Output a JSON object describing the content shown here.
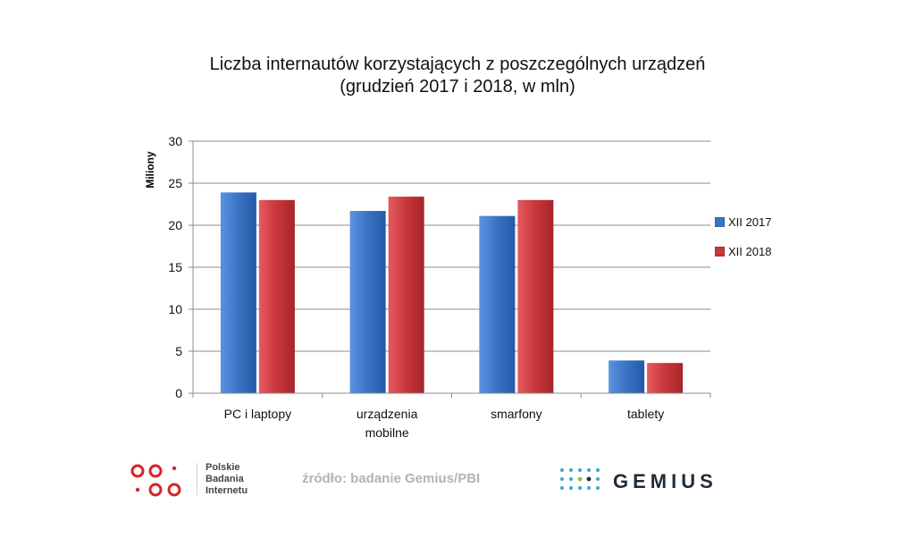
{
  "chart_data": {
    "type": "bar",
    "title": "Liczba internautów korzystających z poszczególnych urządzeń",
    "subtitle": "(grudzień 2017 i 2018, w mln)",
    "ylabel": "Miliony",
    "xlabel": "",
    "ylim": [
      0,
      30
    ],
    "yticks": [
      "0",
      "5",
      "10",
      "15",
      "20",
      "25",
      "30"
    ],
    "categories": [
      "PC i laptopy",
      "urządzenia mobilne",
      "smarfony",
      "tablety"
    ],
    "category_lines": [
      [
        "PC i laptopy"
      ],
      [
        "urządzenia",
        "mobilne"
      ],
      [
        "smarfony"
      ],
      [
        "tablety"
      ]
    ],
    "series": [
      {
        "name": "XII 2017",
        "color": "#3a73c4",
        "values": [
          23.9,
          21.7,
          21.1,
          3.9
        ]
      },
      {
        "name": "XII 2018",
        "color": "#c8363a",
        "values": [
          23.0,
          23.4,
          23.0,
          3.6
        ]
      }
    ],
    "grid": true,
    "legend_position": "right"
  },
  "footer": {
    "pbi_lines": [
      "Polskie",
      "Badania",
      "Internetu"
    ],
    "source": "źródło: badanie Gemius/PBI",
    "gemius": "GEMIUS",
    "pbi_color": "#d8232a"
  }
}
